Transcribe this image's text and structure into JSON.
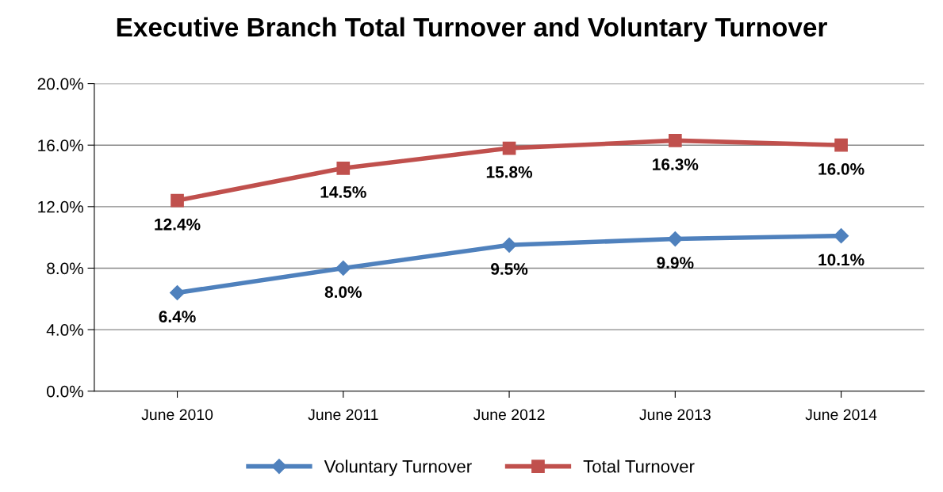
{
  "chart_data": {
    "type": "line",
    "title": "Executive Branch Total Turnover and Voluntary Turnover",
    "categories": [
      "June 2010",
      "June 2011",
      "June 2012",
      "June 2013",
      "June 2014"
    ],
    "series": [
      {
        "name": "Voluntary Turnover",
        "color": "#4f81bd",
        "marker": "diamond",
        "values": [
          6.4,
          8.0,
          9.5,
          9.9,
          10.1
        ],
        "value_labels": [
          "6.4%",
          "8.0%",
          "9.5%",
          "9.9%",
          "10.1%"
        ]
      },
      {
        "name": "Total Turnover",
        "color": "#c0504d",
        "marker": "square",
        "values": [
          12.4,
          14.5,
          15.8,
          16.3,
          16.0
        ],
        "value_labels": [
          "12.4%",
          "14.5%",
          "15.8%",
          "16.3%",
          "16.0%"
        ]
      }
    ],
    "ylim": [
      0,
      20
    ],
    "yticks": [
      {
        "value": 0,
        "label": "0.0%"
      },
      {
        "value": 4,
        "label": "4.0%"
      },
      {
        "value": 8,
        "label": "8.0%"
      },
      {
        "value": 12,
        "label": "12.0%"
      },
      {
        "value": 16,
        "label": "16.0%"
      },
      {
        "value": 20,
        "label": "20.0%"
      }
    ],
    "grid": "y",
    "legend": "bottom",
    "line_style": "solid"
  }
}
